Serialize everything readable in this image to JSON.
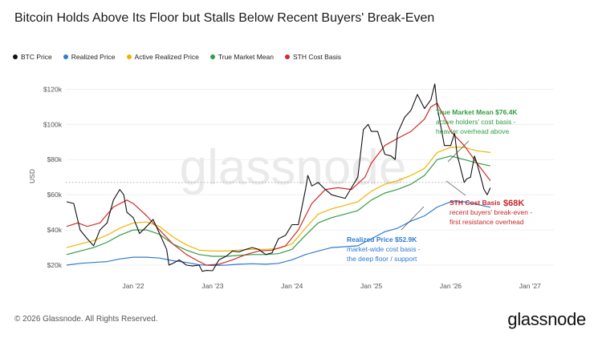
{
  "title": "Bitcoin Holds Above Its Floor but Stalls Below Recent Buyers' Break-Even",
  "footer": "© 2026 Glassnode. All Rights Reserved.",
  "brand": "glassnode",
  "watermark": "glassnode",
  "legend": [
    {
      "name": "BTC Price",
      "color": "#111111"
    },
    {
      "name": "Realized Price",
      "color": "#2f7bd0"
    },
    {
      "name": "Active Realized Price",
      "color": "#f0b400"
    },
    {
      "name": "True Market Mean",
      "color": "#2f9e44"
    },
    {
      "name": "STH Cost Basis",
      "color": "#d02b2b"
    }
  ],
  "chart_data": {
    "type": "line",
    "ylabel": "USD",
    "ylim": [
      15000,
      127000
    ],
    "xlim": [
      2021.15,
      2027.3
    ],
    "x_ticks": [
      {
        "value": 2022.0,
        "label": "Jan '22"
      },
      {
        "value": 2023.0,
        "label": "Jan '23"
      },
      {
        "value": 2024.0,
        "label": "Jan '24"
      },
      {
        "value": 2025.0,
        "label": "Jan '25"
      },
      {
        "value": 2026.0,
        "label": "Jan '26"
      },
      {
        "value": 2027.0,
        "label": "Jan '27"
      }
    ],
    "y_ticks": [
      {
        "value": 20000,
        "label": "$20k"
      },
      {
        "value": 40000,
        "label": "$40k"
      },
      {
        "value": 60000,
        "label": "$60k"
      },
      {
        "value": 80000,
        "label": "$80k"
      },
      {
        "value": 100000,
        "label": "$100k"
      },
      {
        "value": 120000,
        "label": "$120k"
      }
    ],
    "reference_line": 67000,
    "series": [
      {
        "name": "BTC Price",
        "color": "#111111",
        "width": 1.1,
        "x": [
          2021.16,
          2021.25,
          2021.33,
          2021.42,
          2021.5,
          2021.58,
          2021.67,
          2021.75,
          2021.83,
          2021.88,
          2021.92,
          2022.0,
          2022.08,
          2022.17,
          2022.25,
          2022.33,
          2022.42,
          2022.45,
          2022.5,
          2022.58,
          2022.67,
          2022.75,
          2022.83,
          2022.87,
          2022.92,
          2023.0,
          2023.08,
          2023.17,
          2023.25,
          2023.33,
          2023.42,
          2023.5,
          2023.58,
          2023.67,
          2023.75,
          2023.83,
          2023.92,
          2024.0,
          2024.08,
          2024.17,
          2024.2,
          2024.25,
          2024.33,
          2024.42,
          2024.5,
          2024.58,
          2024.67,
          2024.75,
          2024.83,
          2024.9,
          2024.96,
          2025.0,
          2025.08,
          2025.17,
          2025.25,
          2025.3,
          2025.33,
          2025.42,
          2025.5,
          2025.58,
          2025.67,
          2025.75,
          2025.8,
          2025.83,
          2025.92,
          2026.0,
          2026.05,
          2026.08,
          2026.12,
          2026.17,
          2026.2,
          2026.25,
          2026.3,
          2026.33,
          2026.38,
          2026.42,
          2026.46,
          2026.5
        ],
        "y": [
          56000,
          55000,
          40000,
          35000,
          31000,
          40000,
          44000,
          57000,
          63000,
          60000,
          50000,
          47000,
          38000,
          42000,
          46000,
          38000,
          29000,
          20000,
          21000,
          23000,
          20000,
          19500,
          20000,
          16500,
          17000,
          16800,
          23000,
          25000,
          28000,
          27500,
          29000,
          30000,
          29000,
          26000,
          27000,
          35000,
          37000,
          43000,
          43000,
          63000,
          71000,
          65000,
          67000,
          63000,
          60000,
          59000,
          58000,
          64000,
          70000,
          97000,
          100000,
          96000,
          96000,
          83000,
          82000,
          80000,
          95000,
          104000,
          108000,
          117000,
          109000,
          114000,
          123000,
          110000,
          88000,
          88000,
          95000,
          83000,
          76000,
          67000,
          69000,
          70000,
          82000,
          78000,
          70000,
          63000,
          60000,
          64000
        ]
      },
      {
        "name": "Realized Price",
        "color": "#2f7bd0",
        "width": 1.2,
        "x": [
          2021.16,
          2021.33,
          2021.5,
          2021.67,
          2021.83,
          2022.0,
          2022.17,
          2022.33,
          2022.5,
          2022.67,
          2022.83,
          2023.0,
          2023.17,
          2023.33,
          2023.5,
          2023.67,
          2023.83,
          2024.0,
          2024.17,
          2024.33,
          2024.5,
          2024.67,
          2024.83,
          2025.0,
          2025.17,
          2025.33,
          2025.5,
          2025.67,
          2025.83,
          2026.0,
          2026.17,
          2026.33,
          2026.5
        ],
        "y": [
          20000,
          21000,
          21500,
          22000,
          23500,
          24500,
          24500,
          24000,
          22500,
          21500,
          20200,
          19800,
          20000,
          20500,
          20800,
          20500,
          21000,
          23000,
          26000,
          28000,
          30000,
          30500,
          31000,
          35000,
          39000,
          41000,
          45000,
          48000,
          53000,
          56000,
          56000,
          54500,
          52900
        ]
      },
      {
        "name": "Active Realized Price",
        "color": "#f0b400",
        "width": 1.2,
        "x": [
          2021.16,
          2021.33,
          2021.5,
          2021.67,
          2021.83,
          2022.0,
          2022.17,
          2022.33,
          2022.5,
          2022.67,
          2022.83,
          2023.0,
          2023.17,
          2023.33,
          2023.5,
          2023.67,
          2023.83,
          2024.0,
          2024.17,
          2024.33,
          2024.5,
          2024.67,
          2024.83,
          2025.0,
          2025.17,
          2025.33,
          2025.5,
          2025.67,
          2025.83,
          2026.0,
          2026.17,
          2026.33,
          2026.5
        ],
        "y": [
          30000,
          32000,
          34000,
          37000,
          41000,
          44000,
          44500,
          42000,
          36000,
          31500,
          28500,
          28000,
          28000,
          28500,
          29000,
          29000,
          29500,
          32000,
          41000,
          49000,
          52000,
          54000,
          56000,
          62000,
          66000,
          68000,
          71000,
          75000,
          84000,
          87000,
          87000,
          85000,
          84000
        ]
      },
      {
        "name": "True Market Mean",
        "color": "#2f9e44",
        "width": 1.2,
        "x": [
          2021.16,
          2021.33,
          2021.5,
          2021.67,
          2021.83,
          2022.0,
          2022.17,
          2022.33,
          2022.5,
          2022.67,
          2022.83,
          2023.0,
          2023.17,
          2023.33,
          2023.5,
          2023.67,
          2023.83,
          2024.0,
          2024.17,
          2024.33,
          2024.5,
          2024.67,
          2024.83,
          2025.0,
          2025.17,
          2025.33,
          2025.5,
          2025.67,
          2025.83,
          2026.0,
          2026.17,
          2026.33,
          2026.5
        ],
        "y": [
          26000,
          28000,
          30000,
          33000,
          37000,
          40000,
          40000,
          37500,
          32000,
          28500,
          26000,
          25000,
          25000,
          25500,
          26000,
          26000,
          26500,
          29000,
          37000,
          44000,
          47000,
          49000,
          51000,
          57000,
          61000,
          63000,
          66000,
          71000,
          80000,
          82000,
          80000,
          78000,
          76400
        ]
      },
      {
        "name": "STH Cost Basis",
        "color": "#d02b2b",
        "width": 1.2,
        "x": [
          2021.16,
          2021.3,
          2021.42,
          2021.58,
          2021.75,
          2021.92,
          2022.0,
          2022.17,
          2022.33,
          2022.5,
          2022.67,
          2022.83,
          2022.92,
          2023.08,
          2023.25,
          2023.42,
          2023.58,
          2023.75,
          2023.92,
          2024.08,
          2024.25,
          2024.42,
          2024.58,
          2024.75,
          2024.92,
          2025.0,
          2025.17,
          2025.33,
          2025.5,
          2025.67,
          2025.75,
          2025.83,
          2025.92,
          2026.0,
          2026.17,
          2026.33,
          2026.5
        ],
        "y": [
          42000,
          44000,
          42000,
          44000,
          53000,
          57000,
          55000,
          48000,
          40000,
          32000,
          26000,
          22000,
          20000,
          20500,
          23000,
          26000,
          28000,
          28500,
          31000,
          40000,
          55000,
          63000,
          64000,
          63000,
          70000,
          78000,
          88000,
          92000,
          96000,
          103000,
          110000,
          112000,
          104000,
          96000,
          88000,
          78000,
          68000
        ]
      }
    ],
    "annotations": [
      {
        "series": "True Market Mean",
        "label": "True Market Mean $76.4K",
        "lines": [
          "active holders' cost basis -",
          "heavier overhead above"
        ],
        "color": "#2f9e44"
      },
      {
        "series": "STH Cost Basis",
        "label": "STH Cost Basis",
        "value": "$68K",
        "lines": [
          "recent buyers' break-even -",
          "first resistance overhead"
        ],
        "color": "#c62828"
      },
      {
        "series": "Realized Price",
        "label": "Realized Price $52.9K",
        "lines": [
          "market-wide cost basis -",
          "the deep floor / support"
        ],
        "color": "#2f7bd0"
      }
    ]
  }
}
